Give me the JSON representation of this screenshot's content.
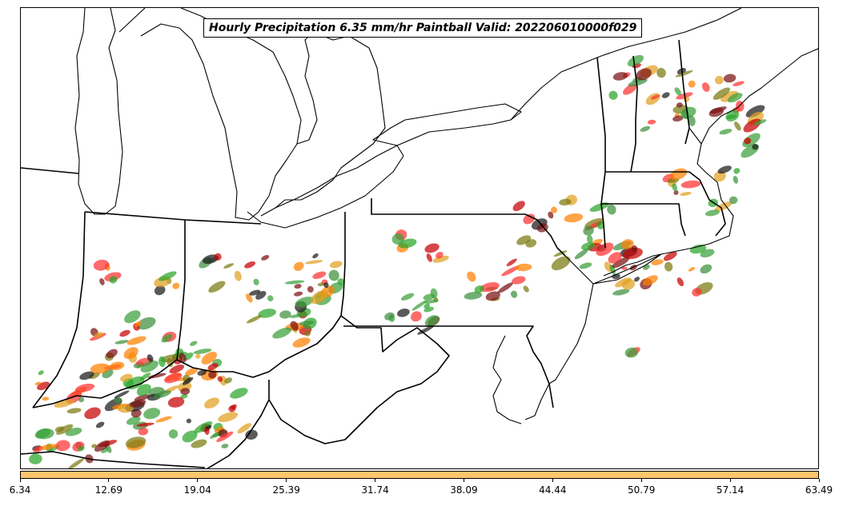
{
  "title": "Hourly Precipitation 6.35 mm/hr Paintball Valid: 202206010000f029",
  "colorbar": {
    "color": "#ffc66b",
    "ticks": [
      "6.34",
      "12.69",
      "19.04",
      "25.39",
      "31.74",
      "38.09",
      "44.44",
      "50.79",
      "57.14",
      "63.49"
    ]
  },
  "member_colors": [
    "#2aa52a",
    "#c80000",
    "#ff7f00",
    "#7a1010",
    "#7a7a10",
    "#1a1a1a",
    "#3aa03a",
    "#e0a020",
    "#ff3030",
    "#3d8f3d"
  ]
}
